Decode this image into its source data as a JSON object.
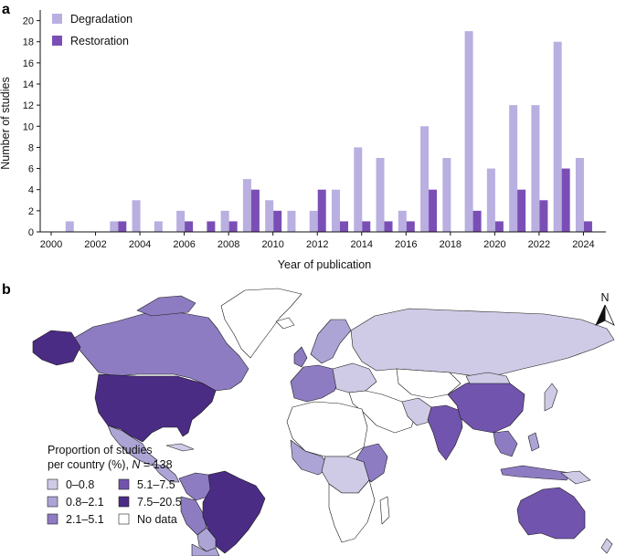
{
  "panel_a": {
    "label": "a"
  },
  "panel_b": {
    "label": "b"
  },
  "colors": {
    "degradation": "#b9afe0",
    "restoration": "#7a4fb5",
    "map_0_0.8": "#cfcbe6",
    "map_0.8_2.1": "#ada4d6",
    "map_2.1_5.1": "#8e7cc2",
    "map_5.1_7.5": "#7154ad",
    "map_7.5_20.5": "#4b2c84",
    "map_no_data": "#ffffff"
  },
  "chart_data": [
    {
      "type": "bar",
      "xlabel": "Year of publication",
      "ylabel": "Number of studies",
      "ylim": [
        0,
        21
      ],
      "yticks": [
        0,
        2,
        4,
        6,
        8,
        10,
        12,
        14,
        16,
        18,
        20
      ],
      "xticks": [
        2000,
        2002,
        2004,
        2006,
        2008,
        2010,
        2012,
        2014,
        2016,
        2018,
        2020,
        2022,
        2024
      ],
      "categories": [
        2000,
        2001,
        2002,
        2003,
        2004,
        2005,
        2006,
        2007,
        2008,
        2009,
        2010,
        2011,
        2012,
        2013,
        2014,
        2015,
        2016,
        2017,
        2018,
        2019,
        2020,
        2021,
        2022,
        2023,
        2024
      ],
      "legend_position": "top-left",
      "grid": false,
      "series": [
        {
          "name": "Degradation",
          "color": "#b9afe0",
          "values": [
            0,
            1,
            0,
            1,
            3,
            1,
            2,
            0,
            2,
            5,
            3,
            2,
            2,
            4,
            8,
            7,
            2,
            10,
            7,
            19,
            6,
            12,
            12,
            18,
            7
          ]
        },
        {
          "name": "Restoration",
          "color": "#7a4fb5",
          "values": [
            0,
            0,
            0,
            1,
            0,
            0,
            1,
            1,
            1,
            4,
            2,
            0,
            4,
            1,
            1,
            1,
            1,
            4,
            0,
            2,
            1,
            4,
            3,
            6,
            1
          ]
        }
      ]
    },
    {
      "type": "choropleth",
      "legend_title_line1": "Proportion of studies",
      "legend_title_line2_prefix": "per country (%), ",
      "legend_title_n_label": "N",
      "legend_title_n_value": " = 138",
      "compass_label": "N",
      "bins": [
        {
          "label": "0–0.8",
          "color": "#cfcbe6"
        },
        {
          "label": "0.8–2.1",
          "color": "#ada4d6"
        },
        {
          "label": "2.1–5.1",
          "color": "#8e7cc2"
        },
        {
          "label": "5.1–7.5",
          "color": "#7154ad"
        },
        {
          "label": "7.5–20.5",
          "color": "#4b2c84"
        },
        {
          "label": "No data",
          "color": "#ffffff"
        }
      ]
    }
  ]
}
